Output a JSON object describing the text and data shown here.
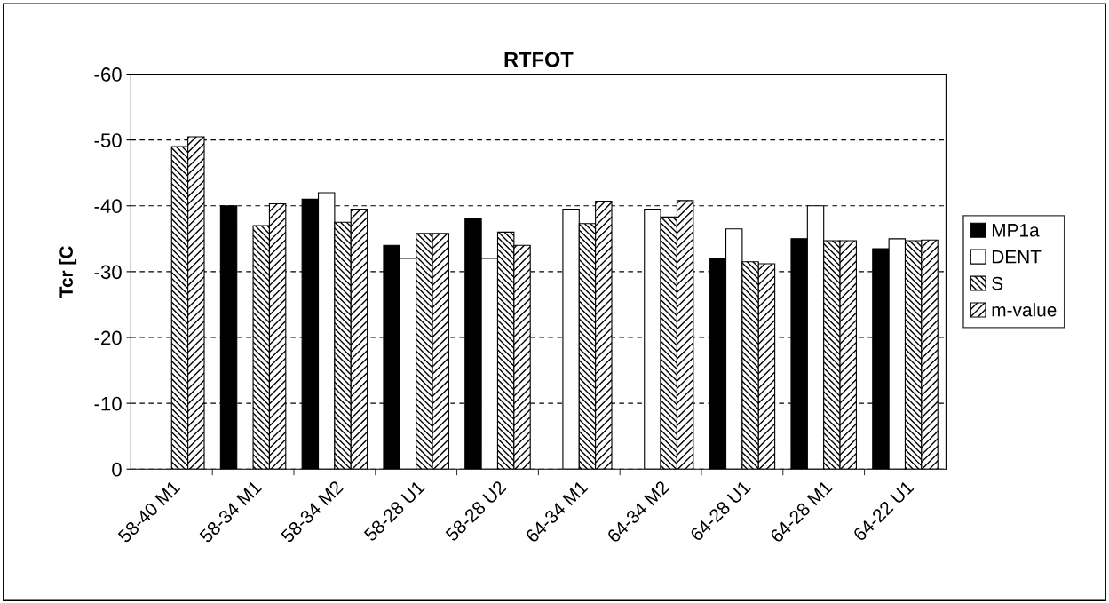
{
  "chart_data": {
    "type": "bar",
    "title": "RTFOT",
    "ylabel": "Tcr [C",
    "categories": [
      "58-40 M1",
      "58-34 M1",
      "58-34 M2",
      "58-28 U1",
      "58-28 U2",
      "64-34 M1",
      "64-34 M2",
      "64-28 U1",
      "64-28 M1",
      "64-22 U1"
    ],
    "series": [
      {
        "name": "MP1a",
        "color": "#000000",
        "values": [
          null,
          -40,
          -41,
          -34,
          -38,
          null,
          null,
          -32,
          -35,
          -33.5
        ]
      },
      {
        "name": "DENT",
        "color": "#ffffff",
        "values": [
          null,
          null,
          -42,
          -32,
          -32,
          -39.5,
          -39.5,
          -36.5,
          -40,
          -35
        ]
      },
      {
        "name": "S",
        "color": "#000000",
        "values": [
          -49,
          -37,
          -37.5,
          -35.8,
          -36,
          -37.3,
          -38.3,
          -31.5,
          -34.7,
          -34.7
        ]
      },
      {
        "name": "m-value",
        "color": "#000000",
        "values": [
          -50.5,
          -40.3,
          -39.5,
          -35.8,
          -34,
          -40.7,
          -40.8,
          -31.2,
          -34.7,
          -34.8
        ]
      }
    ],
    "ylim": [
      0,
      -60
    ],
    "yticks": [
      0,
      -10,
      -20,
      -30,
      -40,
      -50,
      -60
    ],
    "grid": "y",
    "legend": "right"
  }
}
